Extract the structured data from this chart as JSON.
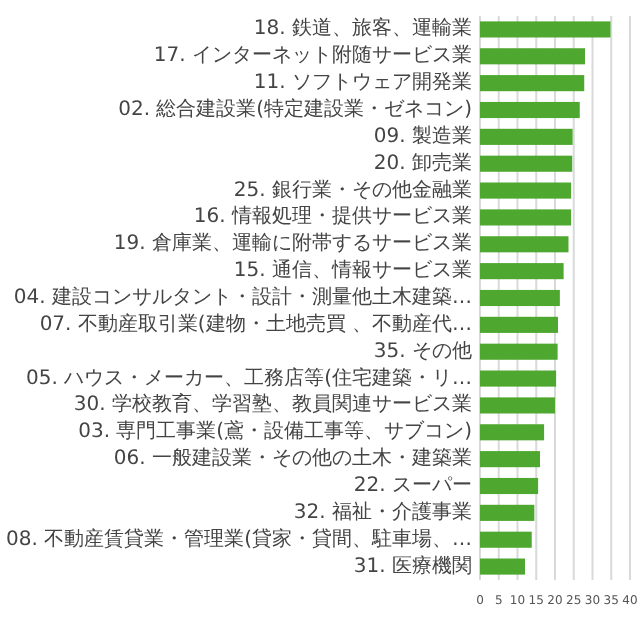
{
  "chart_data": {
    "type": "bar",
    "orientation": "horizontal",
    "color": "#4ea72e",
    "grid": "x",
    "xlim": [
      0,
      40
    ],
    "xticks": [
      0,
      5,
      10,
      15,
      20,
      25,
      30,
      35,
      40
    ],
    "categories": [
      "18. 鉄道、旅客、運輸業",
      "17. インターネット附随サービス業",
      "11. ソフトウェア開発業",
      "02. 総合建設業(特定建設業・ゼネコン)",
      "09. 製造業",
      "20. 卸売業",
      "25. 銀行業・その他金融業",
      "16. 情報処理・提供サービス業",
      "19. 倉庫業、運輸に附帯するサービス業",
      "15. 通信、情報サービス業",
      "04. 建設コンサルタント・設計・測量他土木建築…",
      "07. 不動産取引業(建物・土地売買 、不動産代…",
      "35. その他",
      "05. ハウス・メーカー、工務店等(住宅建築・リ…",
      "30. 学校教育、学習塾、教員関連サービス業",
      "03. 専門工事業(鳶・設備工事等、サブコン)",
      "06. 一般建設業・その他の土木・建築業",
      "22. スーパー",
      "32. 福祉・介護事業",
      "08. 不動産賃貸業・管理業(貸家・貸間、駐車場、…",
      "31. 医療機関"
    ],
    "values": [
      34.8,
      28,
      27.8,
      26.6,
      24.7,
      24.6,
      24.3,
      24.3,
      23.6,
      22.3,
      21.3,
      20.8,
      20.7,
      20.3,
      20,
      17.1,
      16,
      15.5,
      14.5,
      13.8,
      12
    ]
  }
}
